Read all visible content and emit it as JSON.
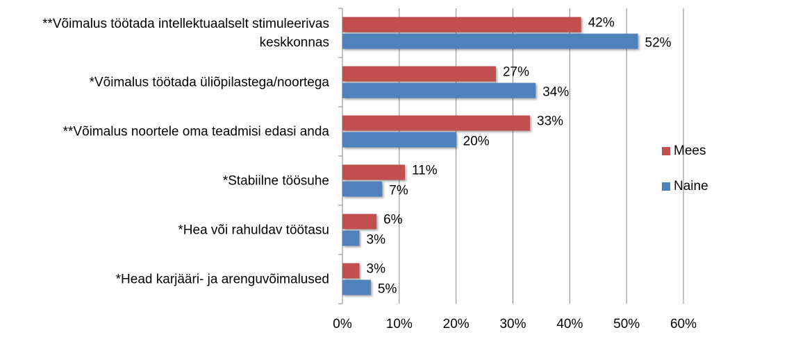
{
  "chart_data": {
    "type": "bar",
    "orientation": "horizontal",
    "categories": [
      "**Võimalus töötada intellektuaalselt stimuleerivas keskkonnas",
      "*Võimalus töötada üliõpilastega/noortega",
      "**Võimalus noortele oma teadmisi edasi anda",
      "*Stabiilne töösuhe",
      "*Hea või rahuldav töötasu",
      "*Head karjääri- ja arenguvõimalused"
    ],
    "series": [
      {
        "name": "Mees",
        "color": "#c0504d",
        "values": [
          42,
          27,
          33,
          11,
          6,
          3
        ],
        "value_labels": [
          "42%",
          "27%",
          "33%",
          "11%",
          "6%",
          "3%"
        ]
      },
      {
        "name": "Naine",
        "color": "#4f81bd",
        "values": [
          52,
          34,
          20,
          7,
          3,
          5
        ],
        "value_labels": [
          "52%",
          "34%",
          "20%",
          "7%",
          "3%",
          "5%"
        ]
      }
    ],
    "xlim": [
      0,
      60
    ],
    "xticks": [
      {
        "value": 0,
        "label": "0%"
      },
      {
        "value": 10,
        "label": "10%"
      },
      {
        "value": 20,
        "label": "20%"
      },
      {
        "value": 30,
        "label": "30%"
      },
      {
        "value": 40,
        "label": "40%"
      },
      {
        "value": 50,
        "label": "50%"
      },
      {
        "value": 60,
        "label": "60%"
      }
    ],
    "grid": true,
    "legend": "right"
  }
}
